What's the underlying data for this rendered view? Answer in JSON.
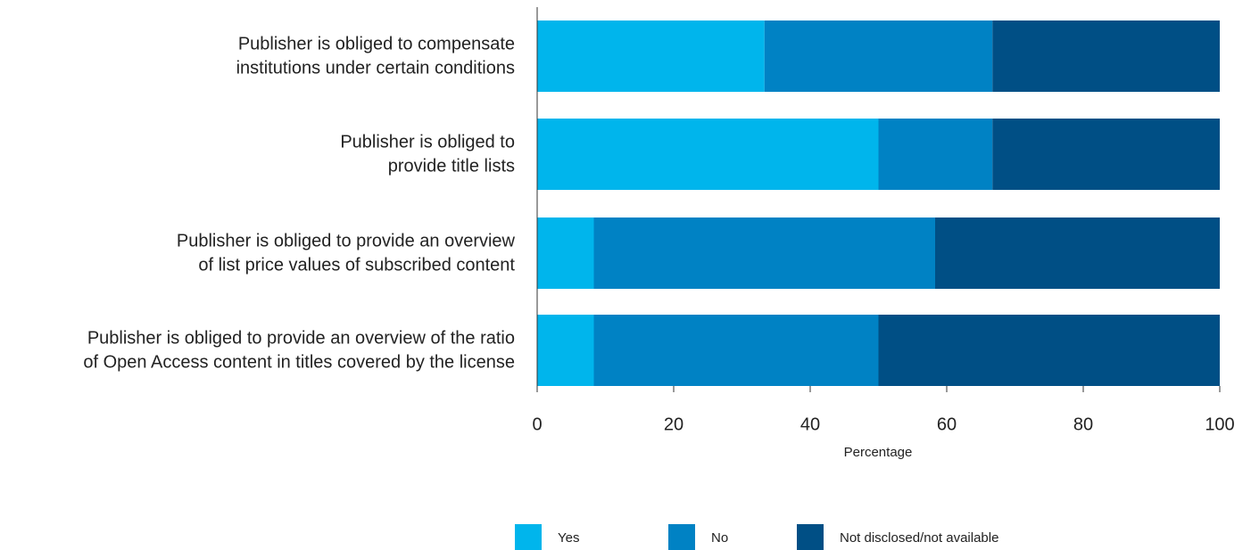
{
  "chart_data": {
    "type": "stacked_bar_horizontal",
    "categories": [
      [
        "Publisher is obliged to compensate",
        "institutions under certain conditions"
      ],
      [
        "Publisher is obliged to",
        "provide title lists"
      ],
      [
        "Publisher is obliged to provide an overview",
        "of list price values of subscribed content"
      ],
      [
        "Publisher is obliged to provide an overview of the ratio",
        "of Open Access content in titles covered by the license"
      ]
    ],
    "series": [
      {
        "name": "Yes",
        "color": "#00b5ec",
        "values": [
          33.3,
          50.0,
          8.3,
          8.3
        ]
      },
      {
        "name": "No",
        "color": "#0082c4",
        "values": [
          33.4,
          16.7,
          50.0,
          41.7
        ]
      },
      {
        "name": "Not disclosed/not available",
        "color": "#004f85",
        "values": [
          33.3,
          33.3,
          41.7,
          50.0
        ]
      }
    ],
    "xlabel": "Percentage",
    "xlim": [
      0,
      100
    ],
    "xticks": [
      0,
      20,
      40,
      60,
      80,
      100
    ],
    "grid": false
  }
}
